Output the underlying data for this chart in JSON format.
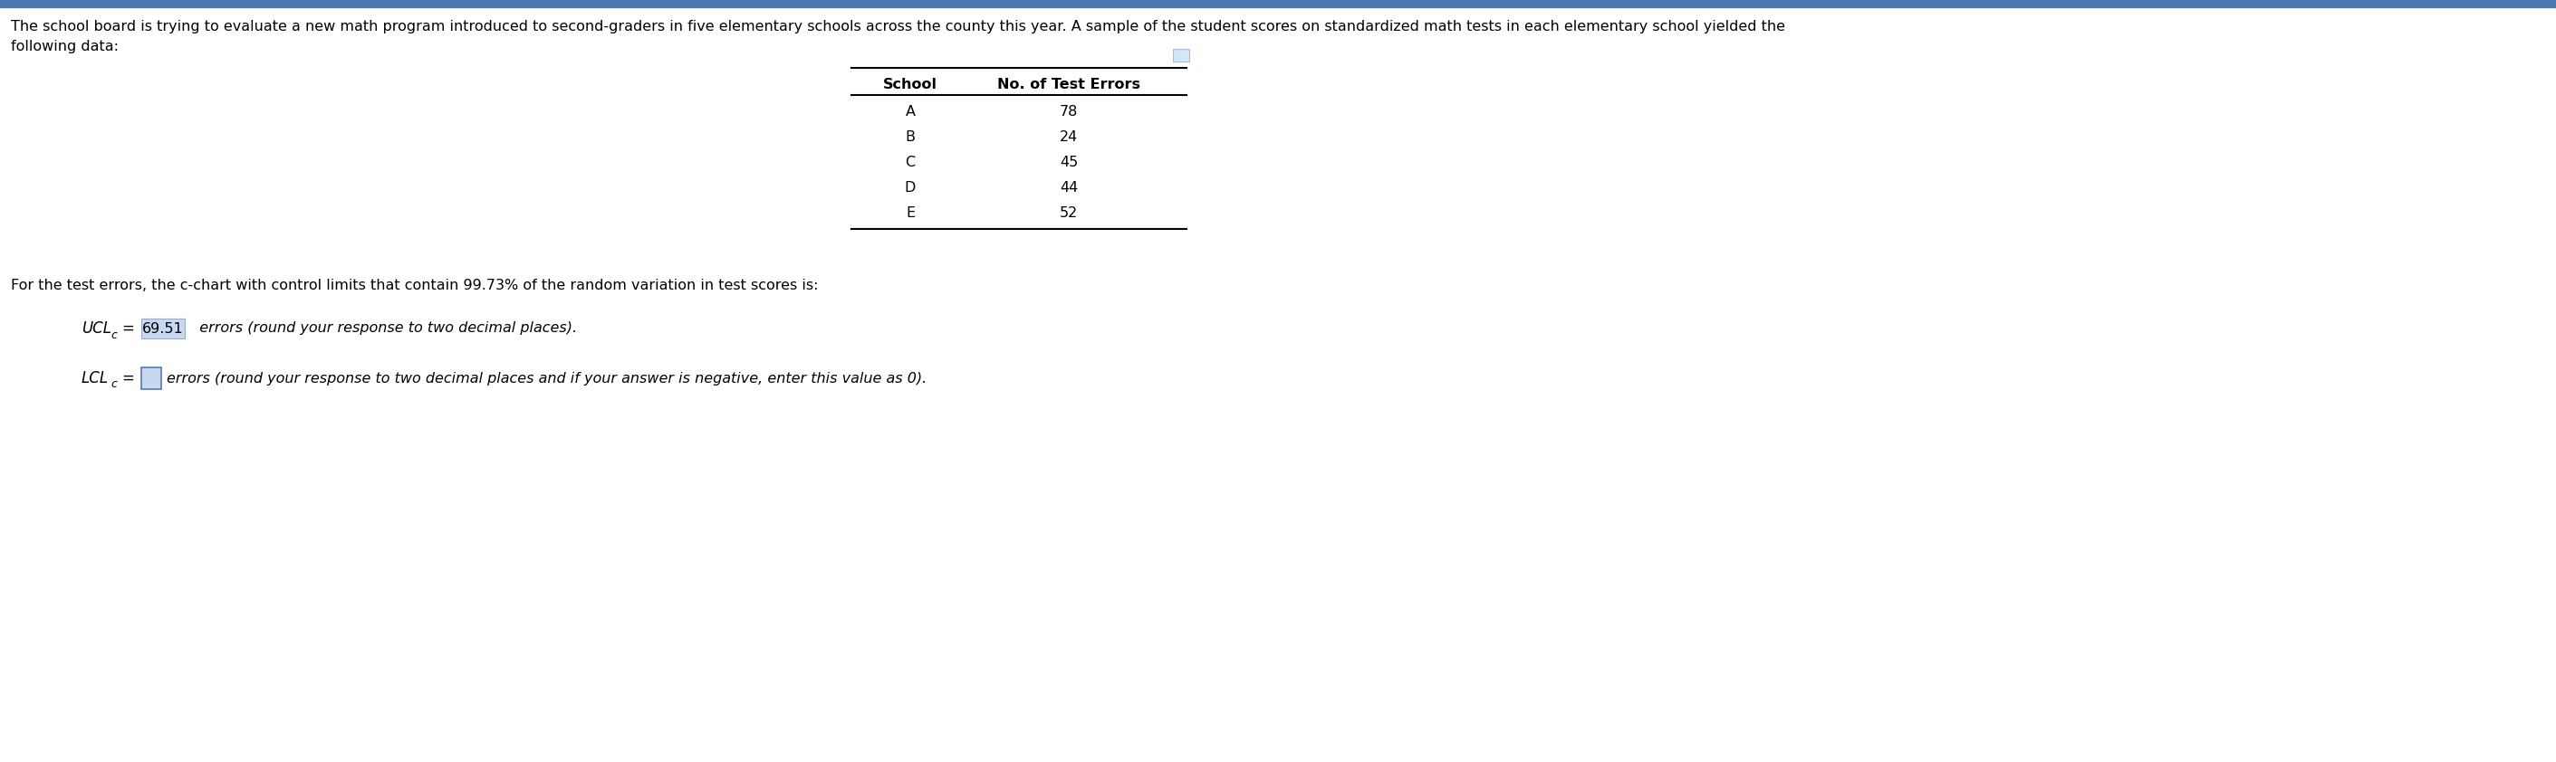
{
  "line1_intro": "The school board is trying to evaluate a new math program introduced to second-graders in five elementary schools across the county this year. A sample of the student scores on standardized math tests in each elementary school yielded the",
  "line2_intro": "following data:",
  "table_headers": [
    "School",
    "No. of Test Errors"
  ],
  "table_data": [
    [
      "A",
      "78"
    ],
    [
      "B",
      "24"
    ],
    [
      "C",
      "45"
    ],
    [
      "D",
      "44"
    ],
    [
      "E",
      "52"
    ]
  ],
  "line_control": "For the test errors, the c-chart with control limits that contain 99.73% of the random variation in test scores is:",
  "ucl_value": "69.51",
  "ucl_suffix": "  errors (round your response to two decimal places).",
  "lcl_suffix": "errors (round your response to two decimal places and if your answer is negative, enter this value as 0).",
  "bg_color": "#ffffff",
  "text_color": "#000000",
  "ucl_highlight_color": "#c8d8f0",
  "lcl_box_color": "#ffffff",
  "lcl_box_edge": "#5577bb",
  "table_border_color": "#000000",
  "icon_color": "#aabbdd",
  "top_bar_color": "#4a7ab5"
}
